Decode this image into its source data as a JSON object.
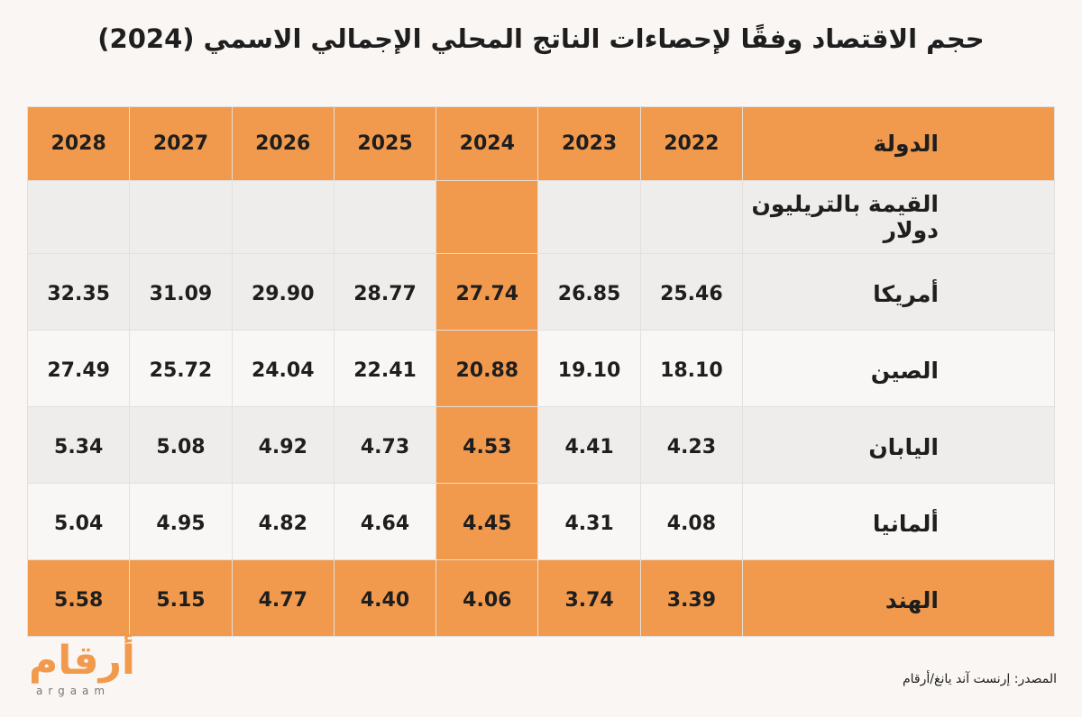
{
  "header": {
    "title": "حجم الاقتصاد وفقًا لإحصاءات الناتج المحلي الإجمالي الاسمي (2024)"
  },
  "table": {
    "columns": [
      "الدولة",
      "2022",
      "2023",
      "2024",
      "2025",
      "2026",
      "2027",
      "2028"
    ],
    "unit_label": "القيمة بالتريليون دولار",
    "rows": [
      [
        "أمريكا",
        "25.46",
        "26.85",
        "27.74",
        "28.77",
        "29.90",
        "31.09",
        "32.35"
      ],
      [
        "الصين",
        "18.10",
        "19.10",
        "20.88",
        "22.41",
        "24.04",
        "25.72",
        "27.49"
      ],
      [
        "اليابان",
        "4.23",
        "4.41",
        "4.53",
        "4.73",
        "4.92",
        "5.08",
        "5.34"
      ],
      [
        "ألمانيا",
        "4.08",
        "4.31",
        "4.45",
        "4.64",
        "4.82",
        "4.95",
        "5.04"
      ],
      [
        "الهند",
        "3.39",
        "3.74",
        "4.06",
        "4.40",
        "4.77",
        "5.15",
        "5.58"
      ]
    ]
  },
  "footer": {
    "source": "المصدر: إرنست آند يانغ/أرقام",
    "logo": "أرقام",
    "logo_latin": "argaam"
  }
}
